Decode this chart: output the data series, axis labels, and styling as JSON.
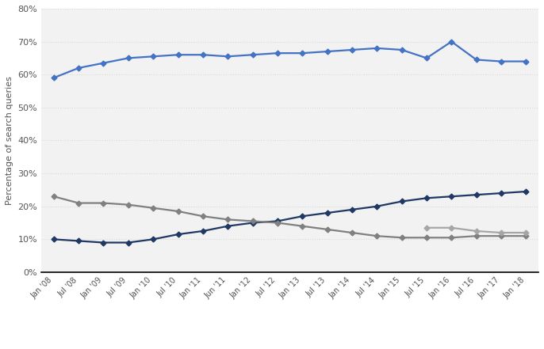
{
  "title": "",
  "ylabel": "Percentage of search queries",
  "background_color": "#ffffff",
  "plot_bg_color": "#f2f2f2",
  "grid_color": "#d9d9d9",
  "ylim": [
    0,
    80
  ],
  "yticks": [
    0,
    10,
    20,
    30,
    40,
    50,
    60,
    70,
    80
  ],
  "tick_labels": [
    "Jan '08",
    "Jul '08",
    "Jan '09",
    "Jul '09",
    "Jan '10",
    "Jul '10",
    "Jan '11",
    "Jun '11",
    "Jan '12",
    "Jul '12",
    "Jan '13",
    "Jul '13",
    "Jan '14",
    "Jul '14",
    "Jan '15",
    "Jul '15",
    "Jan '16",
    "Jul '16",
    "Jan '17",
    "Jan '18"
  ],
  "series": {
    "Google Sites": {
      "color": "#4472c4",
      "marker": "D",
      "marker_size": 3.5,
      "linewidth": 1.6,
      "values": [
        59,
        62,
        63.5,
        65,
        65.5,
        66,
        66,
        65.5,
        66,
        66.5,
        66.5,
        67,
        67.5,
        68,
        67.5,
        65,
        70,
        64.5,
        64,
        64
      ]
    },
    "Microsoft Sites": {
      "color": "#1f3864",
      "marker": "D",
      "marker_size": 3.5,
      "linewidth": 1.6,
      "values": [
        10,
        9.5,
        9,
        9,
        10,
        11.5,
        12.5,
        14,
        15,
        15.5,
        17,
        18,
        19,
        20,
        21.5,
        22.5,
        23,
        23.5,
        24,
        24.5
      ]
    },
    "Oath": {
      "color": "#808080",
      "marker": "D",
      "marker_size": 3.5,
      "linewidth": 1.6,
      "values": [
        23,
        21,
        21,
        20.5,
        19.5,
        18.5,
        17,
        16,
        15.5,
        15,
        14,
        13,
        12,
        11,
        10.5,
        10.5,
        10.5,
        11,
        11,
        11
      ]
    },
    "Ask Network": {
      "color": "#bfbfbf",
      "marker": "D",
      "marker_size": 3.5,
      "linewidth": 1.6,
      "values": [
        null,
        null,
        null,
        null,
        null,
        null,
        null,
        null,
        null,
        null,
        null,
        null,
        null,
        null,
        null,
        null,
        null,
        null,
        null,
        null
      ]
    },
    "AOL Inc.": {
      "color": "#a6a6a6",
      "marker": "D",
      "marker_size": 3.5,
      "linewidth": 1.6,
      "values": [
        null,
        null,
        null,
        null,
        null,
        null,
        null,
        null,
        null,
        null,
        null,
        null,
        null,
        null,
        null,
        13.5,
        13.5,
        12.5,
        12,
        12
      ]
    }
  },
  "legend_colors": {
    "Google Sites": "#4472c4",
    "Microsoft Sites": "#1f3864",
    "Oath": "#808080",
    "Ask Network": "#bfbfbf",
    "AOL Inc.": "#a6a6a6"
  }
}
